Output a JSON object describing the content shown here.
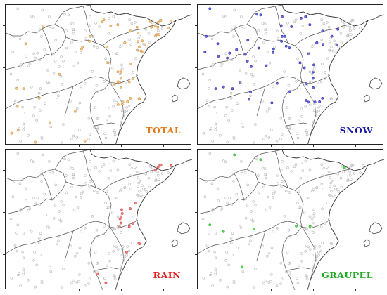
{
  "panels": [
    {
      "id": "total",
      "label": "TOTAL",
      "color": "#e07a1a",
      "dot_fill": "#f3c78f",
      "dot_stroke": "#d6913c",
      "hotspot": "east-coast"
    },
    {
      "id": "snow",
      "label": "SNOW",
      "color": "#1a1aa6",
      "dot_fill": "#6a6ad8",
      "dot_stroke": "#2b2bb0",
      "hotspot": "north-interior"
    },
    {
      "id": "rain",
      "label": "RAIN",
      "color": "#e02020",
      "dot_fill": "#f08a8a",
      "dot_stroke": "#d23a3a",
      "hotspot": "central-coast"
    },
    {
      "id": "graupel",
      "label": "GRAUPEL",
      "color": "#22aa22",
      "dot_fill": "#55e055",
      "dot_stroke": "#2fb32f",
      "hotspot": "scattered"
    }
  ],
  "colors": {
    "background": "#ffffff",
    "border": "#222222",
    "coast": "#333333",
    "station_empty": "#bbbbbb"
  }
}
